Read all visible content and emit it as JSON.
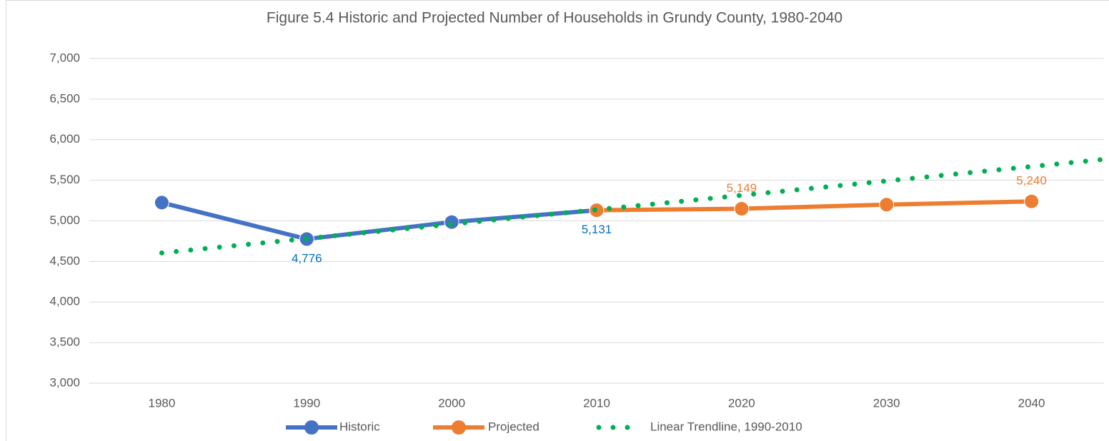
{
  "chart_data": {
    "type": "line",
    "title": "Figure 5.4 Historic and Projected Number of Households in Grundy County, 1980-2040",
    "xlim": [
      1975,
      2045
    ],
    "xticks": [
      1980,
      1990,
      2000,
      2010,
      2020,
      2030,
      2040
    ],
    "ylim": [
      3000,
      7000
    ],
    "yticks": [
      {
        "value": 3000,
        "label": "3,000"
      },
      {
        "value": 3500,
        "label": "3,500"
      },
      {
        "value": 4000,
        "label": "4,000"
      },
      {
        "value": 4500,
        "label": "4,500"
      },
      {
        "value": 5000,
        "label": "5,000"
      },
      {
        "value": 5500,
        "label": "5,500"
      },
      {
        "value": 6000,
        "label": "6,000"
      },
      {
        "value": 6500,
        "label": "6,500"
      },
      {
        "value": 7000,
        "label": "7,000"
      }
    ],
    "grid": true,
    "legend": "bottom",
    "series": [
      {
        "name": "Historic",
        "color": "#4472c4",
        "x": [
          1980,
          1990,
          2000,
          2010
        ],
        "values": [
          5225,
          4776,
          4985,
          5131
        ],
        "value_labels": [
          null,
          "4,776",
          null,
          "5,131"
        ]
      },
      {
        "name": "Projected",
        "color": "#ed7d31",
        "x": [
          2010,
          2020,
          2030,
          2040
        ],
        "values": [
          5131,
          5149,
          5200,
          5240
        ],
        "value_labels": [
          null,
          "5,149",
          null,
          "5,240"
        ]
      },
      {
        "name": "Linear Trendline, 1990-2010",
        "color": "#00b050",
        "style": "dotted",
        "x": [
          1980,
          2045
        ],
        "values": [
          4605,
          5758
        ]
      }
    ]
  }
}
